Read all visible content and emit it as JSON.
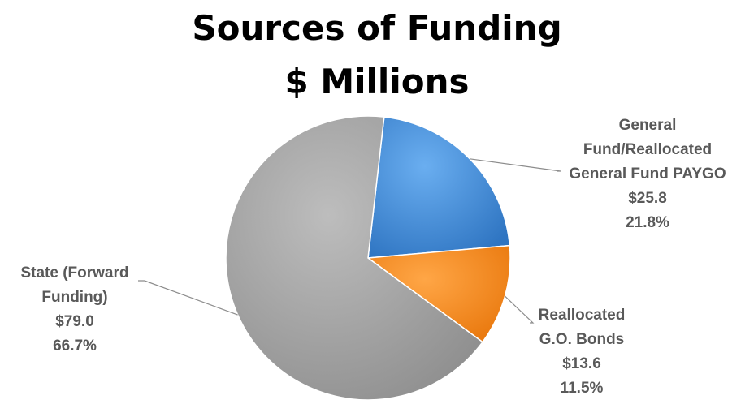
{
  "chart_data": {
    "type": "pie",
    "title": [
      "Sources of Funding",
      "$ Millions"
    ],
    "slices": [
      {
        "label": [
          "General",
          "Fund/Reallocated",
          "General Fund PAYGO"
        ],
        "value_label": "$25.8",
        "value": 25.8,
        "percent_label": "21.8%",
        "percent": 21.8,
        "color": "#3b87d6"
      },
      {
        "label": [
          "Reallocated",
          "G.O. Bonds"
        ],
        "value_label": "$13.6",
        "value": 13.6,
        "percent_label": "11.5%",
        "percent": 11.5,
        "color": "#f28a1e"
      },
      {
        "label": [
          "State (Forward",
          "Funding)"
        ],
        "value_label": "$79.0",
        "value": 79.0,
        "percent_label": "66.7%",
        "percent": 66.7,
        "color": "#a6a6a6"
      }
    ]
  }
}
